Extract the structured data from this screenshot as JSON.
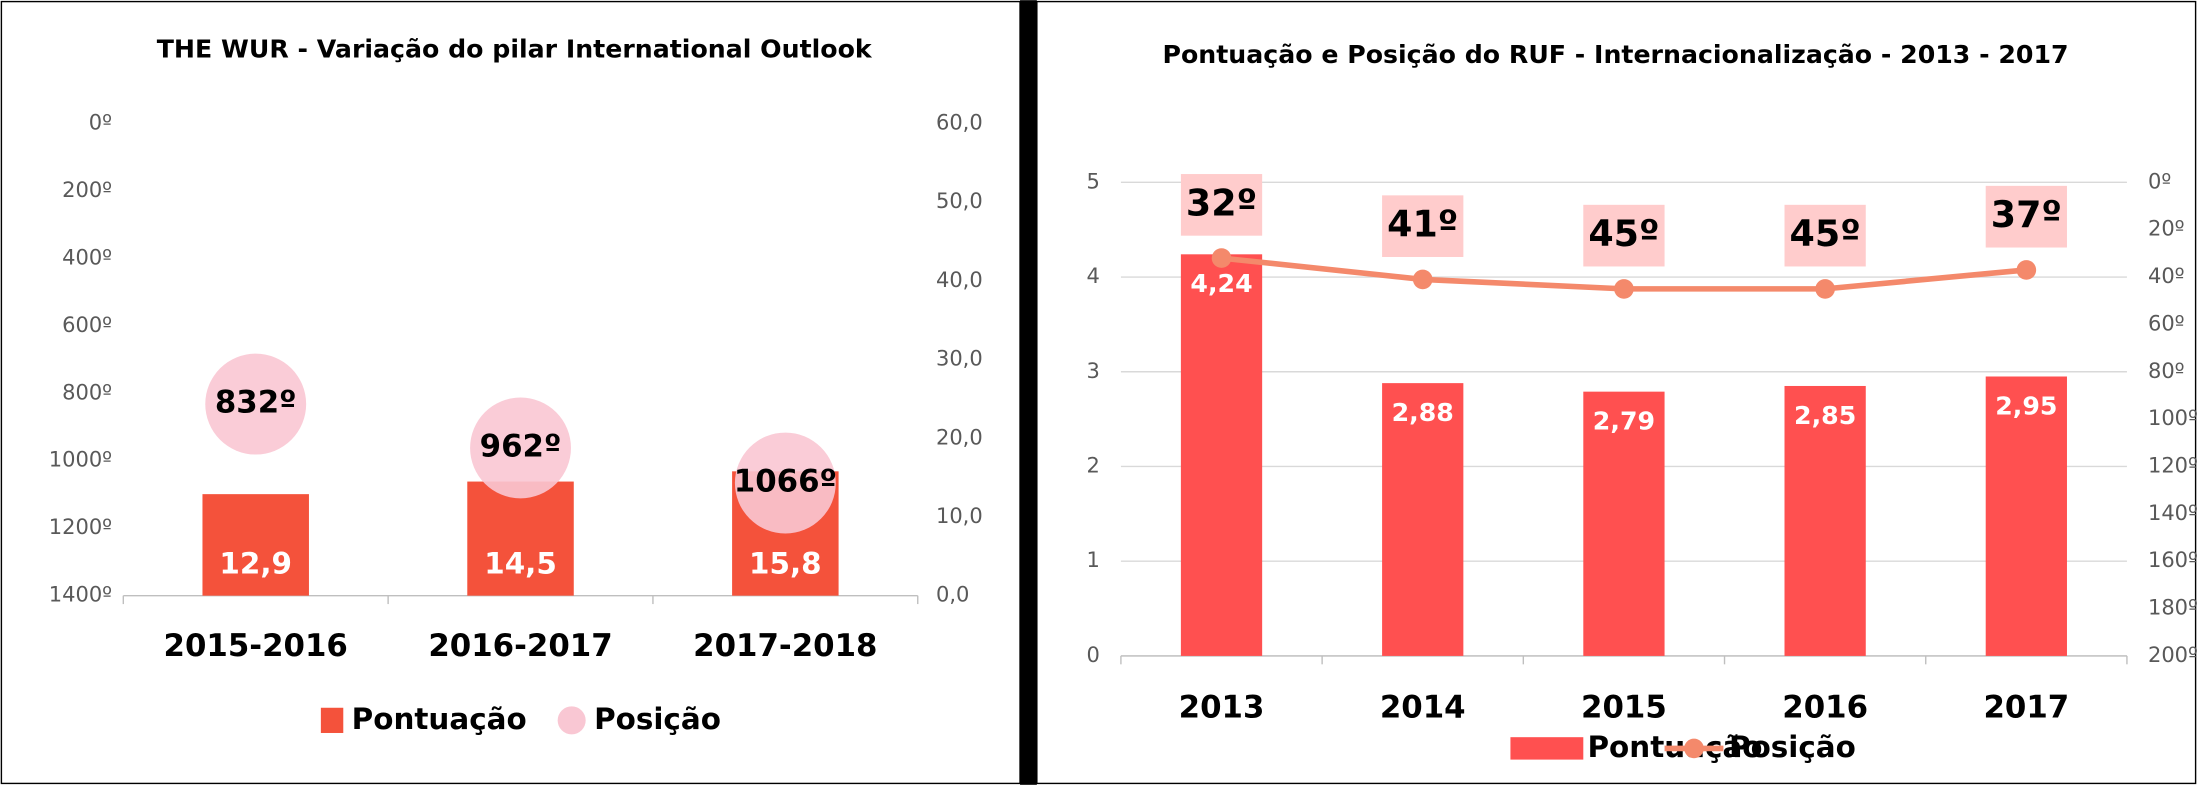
{
  "chart_data": [
    {
      "type": "bar_bubble",
      "title": "THE WUR - Variação do pilar International Outlook",
      "categories": [
        "2015-2016",
        "2016-2017",
        "2017-2018"
      ],
      "series": [
        {
          "name": "Pontuação",
          "color": "#f4523b",
          "values": [
            12.9,
            14.5,
            15.8
          ],
          "value_labels": [
            "12,9",
            "14,5",
            "15,8"
          ],
          "axis": "y2"
        },
        {
          "name": "Posição",
          "color": "#f9c7d3",
          "values": [
            832,
            962,
            1066
          ],
          "value_labels": [
            "832º",
            "962º",
            "1066º"
          ]
        }
      ],
      "ylim": [
        0,
        1400
      ],
      "y_reversed": true,
      "yticks": [
        {
          "value": 0,
          "label": "0º"
        },
        {
          "value": 200,
          "label": "200º"
        },
        {
          "value": 400,
          "label": "400º"
        },
        {
          "value": 600,
          "label": "600º"
        },
        {
          "value": 800,
          "label": "800º"
        },
        {
          "value": 1000,
          "label": "1000º"
        },
        {
          "value": 1200,
          "label": "1200º"
        },
        {
          "value": 1400,
          "label": "1400º"
        }
      ],
      "y2lim": [
        0,
        60
      ],
      "y2ticks": [
        {
          "value": 0,
          "label": "0,0"
        },
        {
          "value": 10,
          "label": "10,0"
        },
        {
          "value": 20,
          "label": "20,0"
        },
        {
          "value": 30,
          "label": "30,0"
        },
        {
          "value": 40,
          "label": "40,0"
        },
        {
          "value": 50,
          "label": "50,0"
        },
        {
          "value": 60,
          "label": "60,0"
        }
      ],
      "grid": false
    },
    {
      "type": "bar_line",
      "title": "Pontuação e Posição do RUF - Internacionalização - 2013 - 2017",
      "categories": [
        "2013",
        "2014",
        "2015",
        "2016",
        "2017"
      ],
      "series": [
        {
          "name": "Pontuação",
          "color": "#ff5050",
          "values": [
            4.24,
            2.88,
            2.79,
            2.85,
            2.95
          ],
          "value_labels": [
            "4,24",
            "2,88",
            "2,79",
            "2,85",
            "2,95"
          ]
        },
        {
          "name": "Posição",
          "color": "#f4896b",
          "values": [
            32,
            41,
            45,
            45,
            37
          ],
          "value_labels": [
            "32º",
            "41º",
            "45º",
            "45º",
            "37º"
          ],
          "axis": "y2"
        }
      ],
      "ylim": [
        0,
        5
      ],
      "yticks": [
        0,
        1,
        2,
        3,
        4,
        5
      ],
      "y2lim": [
        0,
        200
      ],
      "y2_reversed": true,
      "y2ticks": [
        {
          "value": 0,
          "label": "0º"
        },
        {
          "value": 20,
          "label": "20º"
        },
        {
          "value": 40,
          "label": "40º"
        },
        {
          "value": 60,
          "label": "60º"
        },
        {
          "value": 80,
          "label": "80º"
        },
        {
          "value": 100,
          "label": "100º"
        },
        {
          "value": 120,
          "label": "120º"
        },
        {
          "value": 140,
          "label": "140º"
        },
        {
          "value": 160,
          "label": "160º"
        },
        {
          "value": 180,
          "label": "180º"
        },
        {
          "value": 200,
          "label": "200º"
        }
      ],
      "grid": true
    }
  ]
}
